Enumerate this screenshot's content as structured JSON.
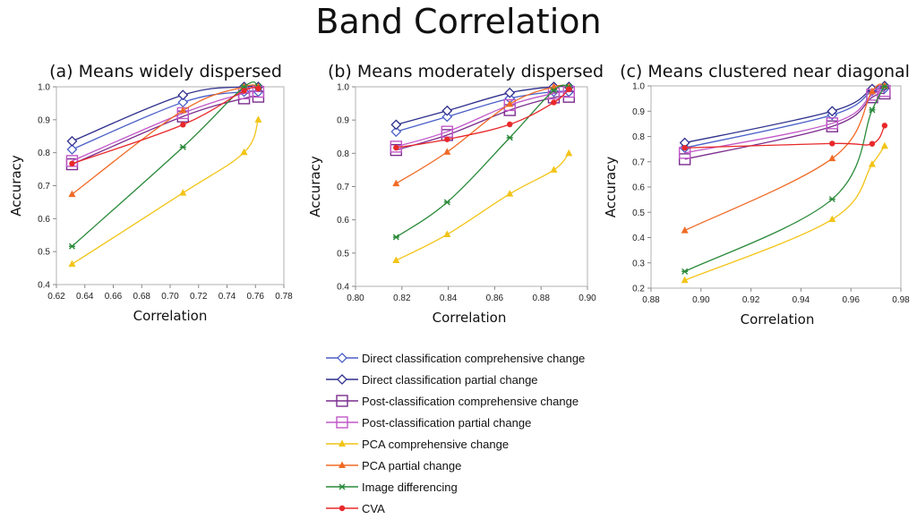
{
  "page_title": "Band Correlation",
  "legend": [
    {
      "name": "Direct classification comprehensive change",
      "color": "#4a5fc8",
      "marker": "diamond"
    },
    {
      "name": "Direct classification partial change",
      "color": "#2e2f8c",
      "marker": "diamond"
    },
    {
      "name": "Post-classification comprehensive change",
      "color": "#7b2d8e",
      "marker": "square"
    },
    {
      "name": "Post-classification partial change",
      "color": "#c158c8",
      "marker": "square"
    },
    {
      "name": "PCA comprehensive change",
      "color": "#f2c417",
      "marker": "triangle"
    },
    {
      "name": "PCA partial change",
      "color": "#f06a25",
      "marker": "triangle"
    },
    {
      "name": "Image differencing",
      "color": "#2a8a3a",
      "marker": "star"
    },
    {
      "name": "CVA",
      "color": "#e8282a",
      "marker": "circle"
    }
  ],
  "chart_data": [
    {
      "type": "line",
      "title": "(a) Means widely dispersed",
      "xlabel": "Correlation",
      "ylabel": "Accuracy",
      "xlim": [
        0.62,
        0.78
      ],
      "ylim": [
        0.4,
        1.0
      ],
      "xticks": [
        "0.62",
        "0.64",
        "0.66",
        "0.68",
        "0.70",
        "0.72",
        "0.74",
        "0.76",
        "0.78"
      ],
      "yticks": [
        "0.4",
        "0.5",
        "0.6",
        "0.7",
        "0.8",
        "0.9",
        "1.0"
      ],
      "x": [
        0.631,
        0.709,
        0.752,
        0.762
      ],
      "series": [
        {
          "name": "Direct classification comprehensive change",
          "values": [
            0.81,
            0.953,
            0.985,
            0.985
          ]
        },
        {
          "name": "Direct classification partial change",
          "values": [
            0.835,
            0.975,
            1.0,
            1.0
          ]
        },
        {
          "name": "Post-classification comprehensive change",
          "values": [
            0.765,
            0.91,
            0.965,
            0.97
          ]
        },
        {
          "name": "Post-classification partial change",
          "values": [
            0.775,
            0.92,
            0.98,
            0.985
          ]
        },
        {
          "name": "PCA comprehensive change",
          "values": [
            0.462,
            0.678,
            0.801,
            0.9
          ]
        },
        {
          "name": "PCA partial change",
          "values": [
            0.674,
            0.928,
            1.0,
            1.0
          ]
        },
        {
          "name": "Image differencing",
          "values": [
            0.516,
            0.817,
            1.0,
            1.0
          ]
        },
        {
          "name": "CVA",
          "values": [
            0.767,
            0.885,
            0.988,
            0.995
          ]
        }
      ]
    },
    {
      "type": "line",
      "title": "(b) Means moderately dispersed",
      "xlabel": "Correlation",
      "ylabel": "Accuracy",
      "xlim": [
        0.8,
        0.9
      ],
      "ylim": [
        0.4,
        1.0
      ],
      "xticks": [
        "0.80",
        "0.82",
        "0.84",
        "0.86",
        "0.88",
        "0.90"
      ],
      "yticks": [
        "0.4",
        "0.5",
        "0.6",
        "0.7",
        "0.8",
        "0.9",
        "1.0"
      ],
      "x": [
        0.8175,
        0.8395,
        0.8665,
        0.8855,
        0.892
      ],
      "series": [
        {
          "name": "Direct classification comprehensive change",
          "values": [
            0.865,
            0.91,
            0.965,
            0.985,
            0.985
          ]
        },
        {
          "name": "Direct classification partial change",
          "values": [
            0.886,
            0.928,
            0.982,
            1.0,
            1.0
          ]
        },
        {
          "name": "Post-classification comprehensive change",
          "values": [
            0.81,
            0.855,
            0.93,
            0.968,
            0.97
          ]
        },
        {
          "name": "Post-classification partial change",
          "values": [
            0.82,
            0.865,
            0.945,
            0.98,
            0.985
          ]
        },
        {
          "name": "PCA comprehensive change",
          "values": [
            0.478,
            0.556,
            0.678,
            0.75,
            0.8
          ]
        },
        {
          "name": "PCA partial change",
          "values": [
            0.709,
            0.804,
            0.948,
            1.0,
            1.0
          ]
        },
        {
          "name": "Image differencing",
          "values": [
            0.548,
            0.653,
            0.847,
            0.99,
            1.0
          ]
        },
        {
          "name": "CVA",
          "values": [
            0.817,
            0.842,
            0.887,
            0.953,
            0.993
          ]
        }
      ]
    },
    {
      "type": "line",
      "title": "(c) Means clustered near diagonal",
      "xlabel": "Correlation",
      "ylabel": "Accuracy",
      "xlim": [
        0.88,
        0.98
      ],
      "ylim": [
        0.2,
        1.0
      ],
      "xticks": [
        "0.88",
        "0.90",
        "0.92",
        "0.94",
        "0.96",
        "0.98"
      ],
      "yticks": [
        "0.2",
        "0.3",
        "0.4",
        "0.5",
        "0.6",
        "0.7",
        "0.8",
        "0.9",
        "1.0"
      ],
      "x": [
        0.8935,
        0.9525,
        0.9685,
        0.9735
      ],
      "series": [
        {
          "name": "Direct classification comprehensive change",
          "values": [
            0.755,
            0.885,
            0.98,
            0.99
          ]
        },
        {
          "name": "Direct classification partial change",
          "values": [
            0.775,
            0.9,
            0.988,
            1.0
          ]
        },
        {
          "name": "Post-classification comprehensive change",
          "values": [
            0.71,
            0.84,
            0.955,
            0.97
          ]
        },
        {
          "name": "Post-classification partial change",
          "values": [
            0.735,
            0.852,
            0.965,
            0.98
          ]
        },
        {
          "name": "PCA comprehensive change",
          "values": [
            0.231,
            0.472,
            0.69,
            0.762
          ]
        },
        {
          "name": "PCA partial change",
          "values": [
            0.428,
            0.713,
            0.978,
            1.0
          ]
        },
        {
          "name": "Image differencing",
          "values": [
            0.266,
            0.552,
            0.905,
            0.998
          ]
        },
        {
          "name": "CVA",
          "values": [
            0.755,
            0.772,
            0.771,
            0.843
          ]
        }
      ]
    }
  ]
}
